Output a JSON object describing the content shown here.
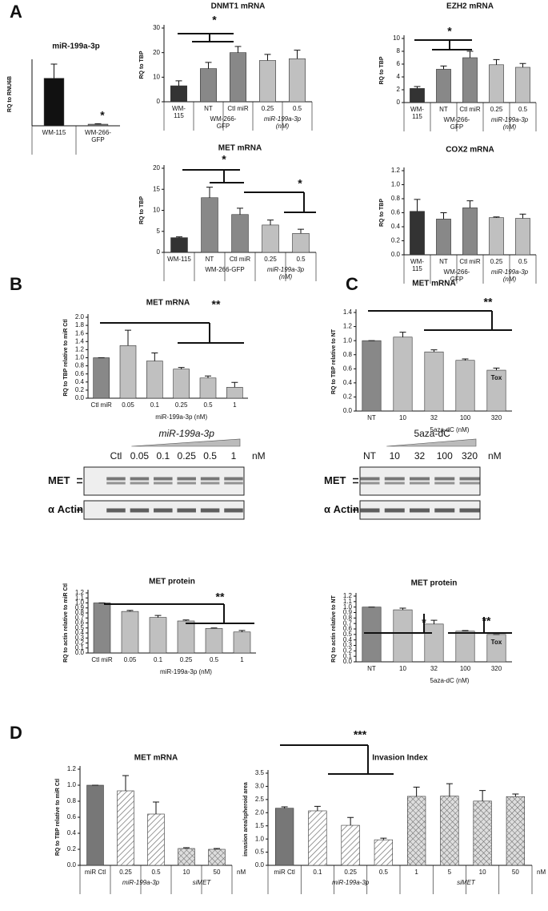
{
  "panels": [
    "A",
    "B",
    "C",
    "D"
  ],
  "chart_data": [
    {
      "type": "bar",
      "title": "miR-199a-3p",
      "ylabel": "RQ to RNU6B",
      "categories": [
        "WM-115",
        "WM-266-\nGFP"
      ],
      "values": [
        30,
        1
      ],
      "errors": [
        9,
        0.3
      ],
      "colors": [
        "#111111",
        "#777777"
      ],
      "patterns": [
        "solid",
        "solid"
      ],
      "ylim": [
        0,
        40
      ],
      "annotations": [
        "*"
      ]
    },
    {
      "type": "bar",
      "title": "DNMT1 mRNA",
      "ylabel": "RQ to TBP",
      "categories": [
        "WM-\n115",
        "NT",
        "Ctl miR",
        "0.25",
        "0.5"
      ],
      "group_labels": [
        "WM-266-\nGFP",
        "miR-199a-3p\n(nM)"
      ],
      "values": [
        6.5,
        13.5,
        20,
        16.8,
        17.5
      ],
      "errors": [
        2,
        2.5,
        2.5,
        2.5,
        3.5
      ],
      "colors": [
        "#333333",
        "#888888",
        "#888888",
        "#c0c0c0",
        "#c0c0c0"
      ],
      "patterns": [
        "solid",
        "solid",
        "solid",
        "solid",
        "solid"
      ],
      "ylim": [
        0,
        30
      ],
      "yticks": [
        0,
        10,
        20,
        30
      ],
      "annotations": [
        "*"
      ]
    },
    {
      "type": "bar",
      "title": "EZH2 mRNA",
      "ylabel": "RQ to TBP",
      "categories": [
        "WM-\n115",
        "NT",
        "Ctl miR",
        "0.25",
        "0.5"
      ],
      "group_labels": [
        "WM-266-\nGFP",
        "miR-199a-3p\n(nM)"
      ],
      "values": [
        2.2,
        5.2,
        7,
        5.9,
        5.5
      ],
      "errors": [
        0.3,
        0.5,
        1,
        0.8,
        0.6
      ],
      "colors": [
        "#333333",
        "#888888",
        "#888888",
        "#c0c0c0",
        "#c0c0c0"
      ],
      "patterns": [
        "solid",
        "solid",
        "solid",
        "solid",
        "solid"
      ],
      "ylim": [
        0,
        10
      ],
      "yticks": [
        0,
        2,
        4,
        6,
        8,
        10
      ],
      "annotations": [
        "*"
      ]
    },
    {
      "type": "bar",
      "title": "MET mRNA",
      "ylabel": "RQ to TBP",
      "categories": [
        "WM-115",
        "NT",
        "Ctl miR",
        "0.25",
        "0.5"
      ],
      "group_labels": [
        "WM-266-GFP",
        "miR-199a-3p\n(nM)"
      ],
      "values": [
        3.5,
        13,
        9,
        6.5,
        4.5
      ],
      "errors": [
        0.2,
        2.5,
        1.5,
        1.2,
        1
      ],
      "colors": [
        "#333333",
        "#888888",
        "#888888",
        "#c0c0c0",
        "#c0c0c0"
      ],
      "patterns": [
        "solid",
        "solid",
        "solid",
        "solid",
        "solid"
      ],
      "ylim": [
        0,
        20
      ],
      "yticks": [
        0,
        5,
        10,
        15,
        20
      ],
      "annotations": [
        "*",
        "*"
      ]
    },
    {
      "type": "bar",
      "title": "COX2 mRNA",
      "ylabel": "RQ to TBP",
      "categories": [
        "WM-\n115",
        "NT",
        "Ctl miR",
        "0.25",
        "0.5"
      ],
      "group_labels": [
        "WM-266-\nGFP",
        "miR-199a-3p\n(nM)"
      ],
      "values": [
        0.62,
        0.51,
        0.67,
        0.53,
        0.52
      ],
      "errors": [
        0.17,
        0.09,
        0.1,
        0.01,
        0.06
      ],
      "colors": [
        "#333333",
        "#888888",
        "#888888",
        "#c0c0c0",
        "#c0c0c0"
      ],
      "patterns": [
        "solid",
        "solid",
        "solid",
        "solid",
        "solid"
      ],
      "ylim": [
        0,
        1.2
      ],
      "yticks": [
        {
          "value": 0,
          "label": "0.0"
        },
        0.2,
        0.4,
        0.6,
        0.8,
        {
          "value": 1,
          "label": "1.0"
        },
        1.2
      ],
      "annotations": []
    },
    {
      "type": "bar",
      "title": "MET mRNA",
      "ylabel": "RQ to TBP relative to miR Ctl",
      "xlabel": "miR-199a-3p (nM)",
      "categories": [
        "Ctl miR",
        "0.05",
        "0.1",
        "0.25",
        "0.5",
        "1"
      ],
      "values": [
        1,
        1.3,
        0.92,
        0.72,
        0.5,
        0.27
      ],
      "errors": [
        0,
        0.38,
        0.2,
        0.04,
        0.05,
        0.12
      ],
      "colors": [
        "#888888",
        "#c0c0c0",
        "#c0c0c0",
        "#c0c0c0",
        "#c0c0c0",
        "#c0c0c0"
      ],
      "patterns": [
        "solid",
        "solid",
        "solid",
        "solid",
        "solid",
        "solid"
      ],
      "ylim": [
        0,
        2
      ],
      "yticks": [
        {
          "value": 0,
          "label": "0.0"
        },
        0.2,
        0.4,
        0.6,
        0.8,
        {
          "value": 1,
          "label": "1.0"
        },
        1.2,
        1.4,
        1.6,
        1.8,
        {
          "value": 2,
          "label": "2.0"
        }
      ],
      "annotations": [
        "**"
      ]
    },
    {
      "type": "bar",
      "title": "MET mRNA",
      "ylabel": "RQ to TBP relative to NT",
      "xlabel": "5aza-dC (nM)",
      "categories": [
        "NT",
        "10",
        "32",
        "100",
        "320"
      ],
      "values": [
        1,
        1.05,
        0.84,
        0.72,
        0.58
      ],
      "errors": [
        0,
        0.07,
        0.03,
        0.02,
        0.03
      ],
      "bar_labels": [
        null,
        null,
        null,
        null,
        "Tox"
      ],
      "colors": [
        "#888888",
        "#c0c0c0",
        "#c0c0c0",
        "#c0c0c0",
        "#c0c0c0"
      ],
      "patterns": [
        "solid",
        "solid",
        "solid",
        "solid",
        "solid"
      ],
      "ylim": [
        0,
        1.4
      ],
      "yticks": [
        {
          "value": 0,
          "label": "0.0"
        },
        0.2,
        0.4,
        0.6,
        0.8,
        {
          "value": 1,
          "label": "1.0"
        },
        1.2,
        1.4
      ],
      "annotations": [
        "**"
      ]
    },
    {
      "type": "bar",
      "title": "MET protein",
      "ylabel": "RQ to actin relative to miR Ctl",
      "xlabel": "miR-199a-3p (nM)",
      "categories": [
        "Ctl miR",
        "0.05",
        "0.1",
        "0.25",
        "0.5",
        "1"
      ],
      "values": [
        1,
        0.83,
        0.71,
        0.64,
        0.49,
        0.42
      ],
      "errors": [
        0,
        0.02,
        0.04,
        0.02,
        0.01,
        0.03
      ],
      "colors": [
        "#888888",
        "#c0c0c0",
        "#c0c0c0",
        "#c0c0c0",
        "#c0c0c0",
        "#c0c0c0"
      ],
      "patterns": [
        "solid",
        "solid",
        "solid",
        "solid",
        "solid",
        "solid"
      ],
      "ylim": [
        0,
        1.2
      ],
      "yticks": [
        {
          "value": 0,
          "label": "0.0"
        },
        0.1,
        0.2,
        0.3,
        0.4,
        0.5,
        0.6,
        0.7,
        0.8,
        0.9,
        {
          "value": 1,
          "label": "1.0"
        },
        1.1,
        1.2
      ],
      "annotations": [
        "**"
      ]
    },
    {
      "type": "bar",
      "title": "MET protein",
      "ylabel": "RQ to actin relative to NT",
      "xlabel": "5aza-dC (nM)",
      "categories": [
        "NT",
        "10",
        "32",
        "100",
        "320"
      ],
      "values": [
        1,
        0.95,
        0.69,
        0.56,
        0.5
      ],
      "errors": [
        0,
        0.03,
        0.07,
        0.01,
        0
      ],
      "bar_labels": [
        null,
        null,
        null,
        null,
        "Tox"
      ],
      "colors": [
        "#888888",
        "#c0c0c0",
        "#c0c0c0",
        "#c0c0c0",
        "#c0c0c0"
      ],
      "patterns": [
        "solid",
        "solid",
        "solid",
        "solid",
        "solid"
      ],
      "ylim": [
        0,
        1.2
      ],
      "yticks": [
        {
          "value": 0,
          "label": "0.0"
        },
        0.1,
        0.2,
        0.3,
        0.4,
        0.5,
        0.6,
        0.7,
        0.8,
        0.9,
        {
          "value": 1,
          "label": "1.0"
        },
        1.1,
        1.2
      ],
      "annotations": [
        "*",
        "**"
      ]
    },
    {
      "type": "bar",
      "title": "MET mRNA",
      "ylabel": "RQ to TBP relative to miR Ctl",
      "categories": [
        "miR Ctl",
        "0.25",
        "0.5",
        "10",
        "50"
      ],
      "group_labels": [
        "miR-199a-3p",
        "siMET"
      ],
      "unit": "nM",
      "values": [
        1,
        0.93,
        0.64,
        0.21,
        0.2
      ],
      "errors": [
        0,
        0.19,
        0.15,
        0.01,
        0.01
      ],
      "colors": [
        "#777777",
        "#ffffff",
        "#ffffff",
        "#999999",
        "#999999"
      ],
      "patterns": [
        "solid",
        "hatch",
        "hatch",
        "cross",
        "cross"
      ],
      "ylim": [
        0,
        1.2
      ],
      "yticks": [
        {
          "value": 0,
          "label": "0.0"
        },
        0.2,
        0.4,
        0.6,
        0.8,
        {
          "value": 1,
          "label": "1.0"
        },
        1.2
      ],
      "annotations": []
    },
    {
      "type": "bar",
      "title": "Invasion Index",
      "ylabel": "invasion area/spheroid area",
      "categories": [
        "miR Ctl",
        "0.1",
        "0.25",
        "0.5",
        "1",
        "5",
        "10",
        "50"
      ],
      "group_labels": [
        "miR-199a-3p",
        "siMET"
      ],
      "unit": "nM",
      "values": [
        2.17,
        2.07,
        1.52,
        0.97,
        2.62,
        2.63,
        2.44,
        2.61
      ],
      "errors": [
        0.05,
        0.17,
        0.3,
        0.06,
        0.35,
        0.47,
        0.4,
        0.1
      ],
      "colors": [
        "#777777",
        "#ffffff",
        "#ffffff",
        "#ffffff",
        "#999999",
        "#999999",
        "#999999",
        "#999999"
      ],
      "patterns": [
        "solid",
        "hatch",
        "hatch",
        "hatch",
        "cross",
        "cross",
        "cross",
        "cross"
      ],
      "ylim": [
        0,
        3.5
      ],
      "yticks": [
        {
          "value": 0,
          "label": "0.0"
        },
        0.5,
        {
          "value": 1,
          "label": "1.0"
        },
        1.5,
        {
          "value": 2,
          "label": "2.0"
        },
        2.5,
        {
          "value": 3,
          "label": "3.0"
        },
        3.5
      ],
      "annotations": [
        "***"
      ]
    }
  ],
  "blots": [
    {
      "title": "miR-199a-3p",
      "lanes": [
        "Ctl",
        "0.05",
        "0.1",
        "0.25",
        "0.5",
        "1"
      ],
      "unit": "nM",
      "rows": [
        "MET",
        "α Actin"
      ]
    },
    {
      "title": "5aza-dC",
      "lanes": [
        "NT",
        "10",
        "32",
        "100",
        "320"
      ],
      "unit": "nM",
      "rows": [
        "MET",
        "α Actin"
      ]
    }
  ]
}
